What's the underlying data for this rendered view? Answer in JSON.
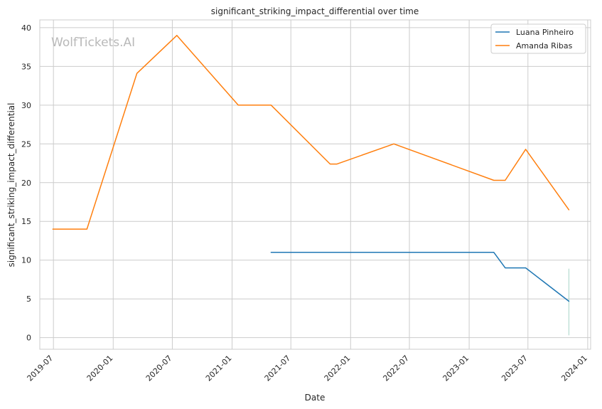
{
  "chart_data": {
    "type": "line",
    "title": "significant_striking_impact_differential over time",
    "xlabel": "Date",
    "ylabel": "significant_striking_impact_differential",
    "watermark": "WolfTickets.AI",
    "x_ticks": [
      "2019-07",
      "2020-01",
      "2020-07",
      "2021-01",
      "2021-07",
      "2022-01",
      "2022-07",
      "2023-01",
      "2023-07",
      "2024-01"
    ],
    "y_ticks": [
      0,
      5,
      10,
      15,
      20,
      25,
      30,
      35,
      40
    ],
    "xlim": [
      "2019-05-20",
      "2024-01-10"
    ],
    "ylim": [
      -1.5,
      41
    ],
    "grid": true,
    "legend_position": "top-right",
    "series": [
      {
        "name": "Luana Pinheiro",
        "color": "#1f77b4",
        "points": [
          {
            "x": "2021-05-01",
            "y": 11.0
          },
          {
            "x": "2023-03-18",
            "y": 11.0
          },
          {
            "x": "2023-04-22",
            "y": 9.0
          },
          {
            "x": "2023-06-24",
            "y": 9.0
          },
          {
            "x": "2023-11-04",
            "y": 4.7
          }
        ]
      },
      {
        "name": "Amanda Ribas",
        "color": "#ff7f0e",
        "points": [
          {
            "x": "2019-06-29",
            "y": 14.0
          },
          {
            "x": "2019-10-12",
            "y": 14.0
          },
          {
            "x": "2020-03-14",
            "y": 34.1
          },
          {
            "x": "2020-07-15",
            "y": 39.0
          },
          {
            "x": "2021-01-20",
            "y": 30.0
          },
          {
            "x": "2021-05-01",
            "y": 30.0
          },
          {
            "x": "2021-10-30",
            "y": 22.4
          },
          {
            "x": "2021-11-20",
            "y": 22.4
          },
          {
            "x": "2022-05-14",
            "y": 25.0
          },
          {
            "x": "2023-03-18",
            "y": 20.3
          },
          {
            "x": "2023-04-22",
            "y": 20.3
          },
          {
            "x": "2023-06-24",
            "y": 24.3
          },
          {
            "x": "2023-11-04",
            "y": 16.5
          }
        ]
      }
    ],
    "vertical_marker": {
      "x": "2023-11-04",
      "y_range": [
        0.3,
        8.9
      ],
      "color": "#a8d5c8"
    }
  }
}
